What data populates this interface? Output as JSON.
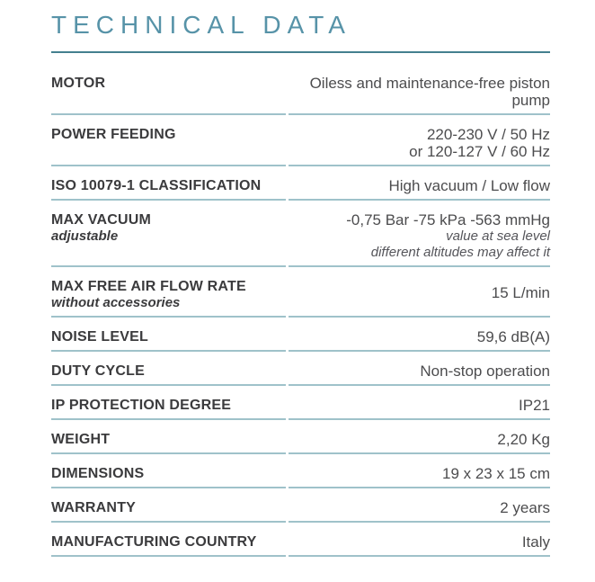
{
  "page": {
    "title": "TECHNICAL DATA"
  },
  "colors": {
    "title": "#5793a8",
    "top_rule": "#44808f",
    "row_divider": "#9fc2ca",
    "label_text": "#3b3b3d",
    "value_text": "#4c4c4e",
    "note_text": "#55555a",
    "background": "#ffffff"
  },
  "table": {
    "rows": [
      {
        "label": "MOTOR",
        "value_lines": [
          "Oiless and maintenance-free piston pump"
        ]
      },
      {
        "label": "POWER FEEDING",
        "value_lines": [
          "220-230 V / 50 Hz",
          "or 120-127 V / 60 Hz"
        ]
      },
      {
        "label": "ISO 10079-1 CLASSIFICATION",
        "value_lines": [
          "High vacuum / Low flow"
        ]
      },
      {
        "label": "MAX VACUUM",
        "sublabel": "adjustable",
        "value_lines": [
          "-0,75 Bar -75 kPa -563 mmHg"
        ],
        "note_lines": [
          "value at sea level",
          "different altitudes may affect it"
        ]
      },
      {
        "label": "MAX FREE AIR FLOW RATE",
        "sublabel": "without accessories",
        "value_lines": [
          "15 L/min"
        ],
        "center_value": true
      },
      {
        "label": "NOISE LEVEL",
        "value_lines": [
          "59,6 dB(A)"
        ]
      },
      {
        "label": "DUTY CYCLE",
        "value_lines": [
          "Non-stop operation"
        ]
      },
      {
        "label": "IP PROTECTION DEGREE",
        "value_lines": [
          "IP21"
        ]
      },
      {
        "label": "WEIGHT",
        "value_lines": [
          "2,20 Kg"
        ]
      },
      {
        "label": "DIMENSIONS",
        "value_lines": [
          "19 x 23 x 15 cm"
        ]
      },
      {
        "label": "WARRANTY",
        "value_lines": [
          "2 years"
        ]
      },
      {
        "label": "MANUFACTURING COUNTRY",
        "value_lines": [
          "Italy"
        ]
      }
    ]
  }
}
